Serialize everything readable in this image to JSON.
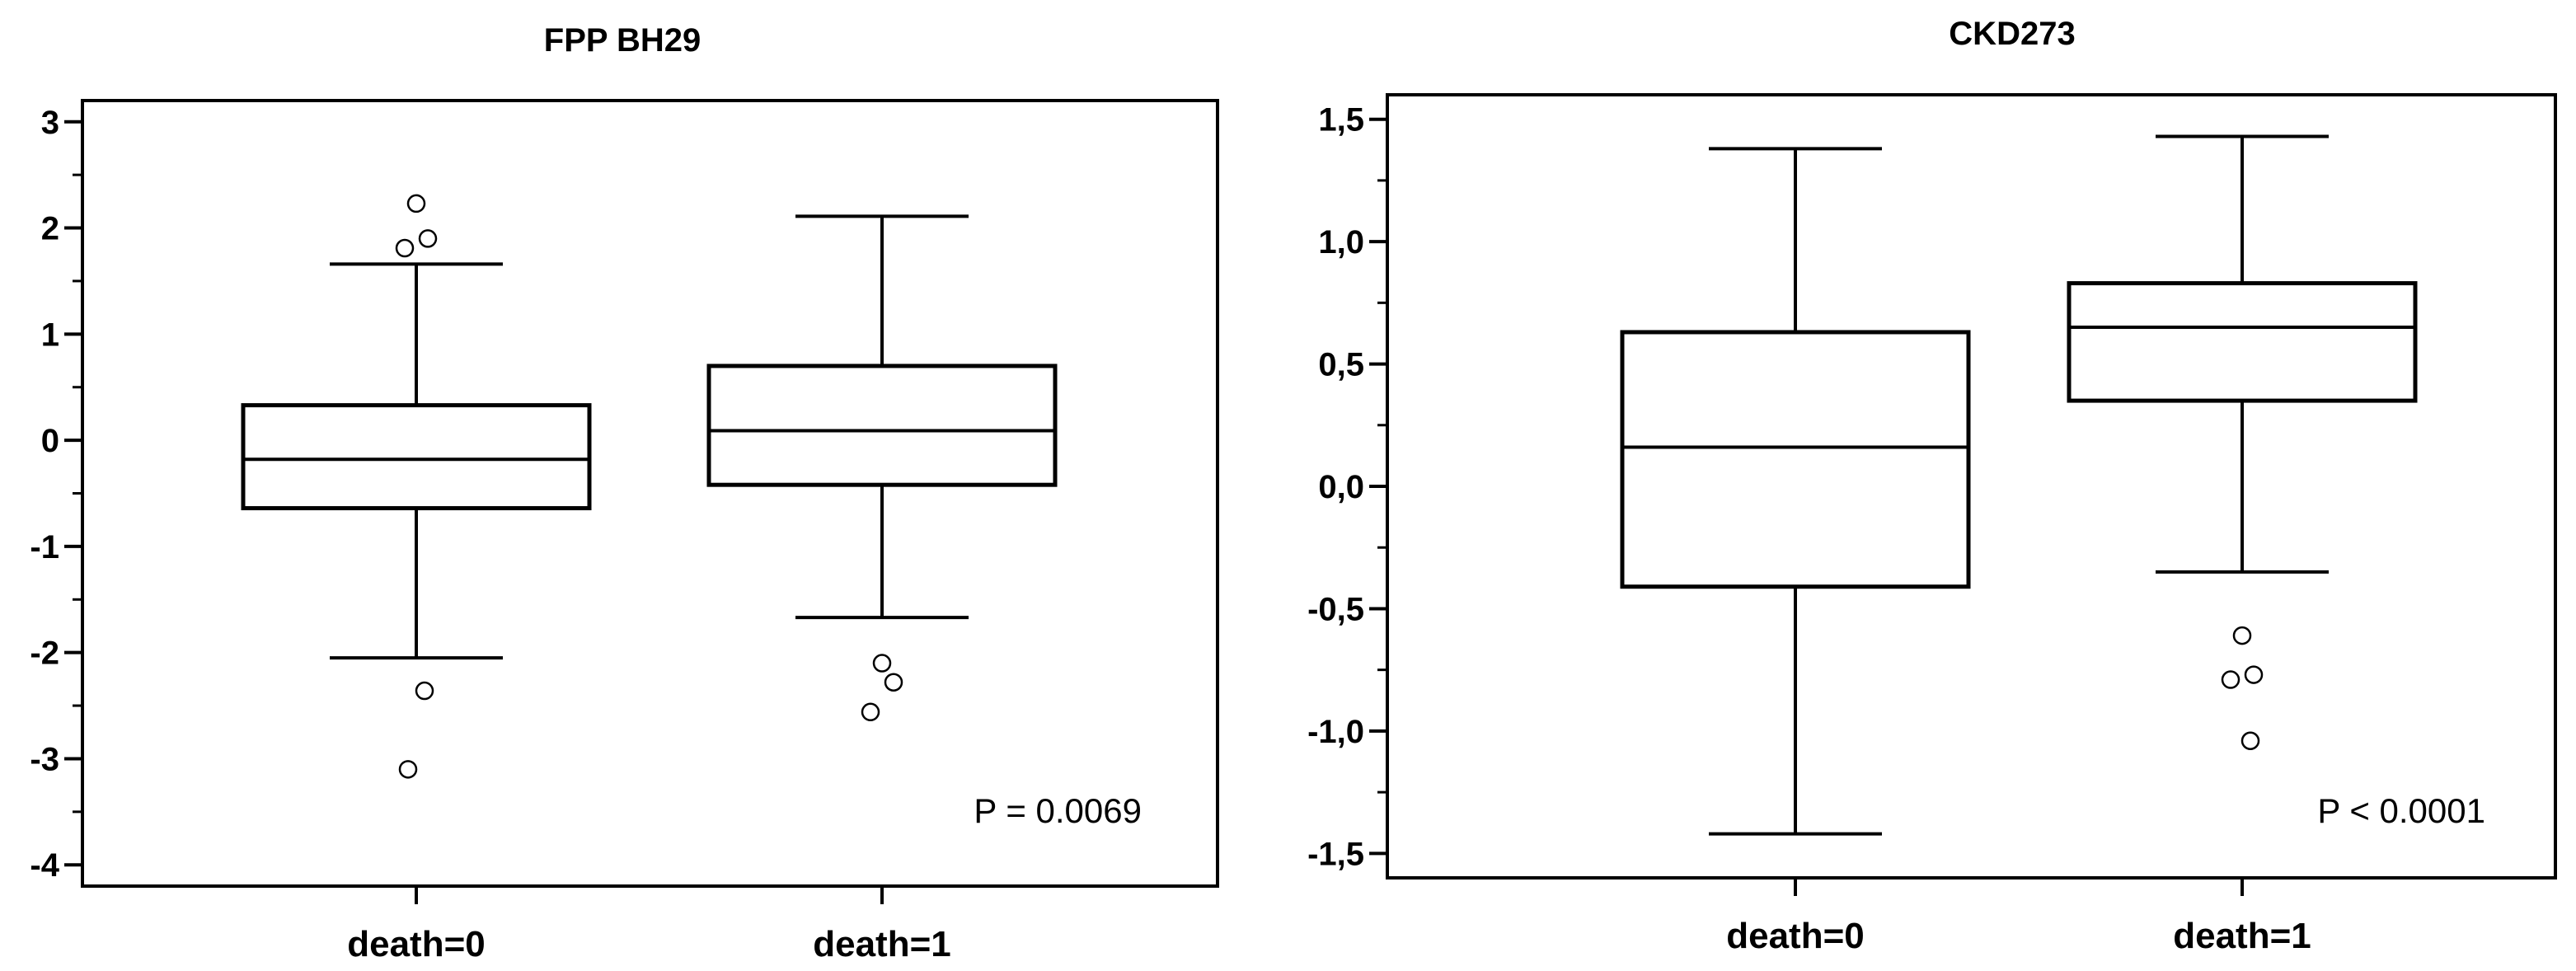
{
  "chart_data": [
    {
      "type": "box",
      "title": "FPP BH29",
      "xlabel": "",
      "ylabel": "",
      "ylim": [
        -4.2,
        3.2
      ],
      "yticks": [
        3,
        2,
        1,
        0,
        -1,
        -2,
        -3,
        -4
      ],
      "ytick_labels": [
        "3",
        "2",
        "1",
        "0",
        "-1",
        "-2",
        "-3",
        "-4"
      ],
      "categories": [
        "death=0",
        "death=1"
      ],
      "boxes": [
        {
          "category": "death=0",
          "whisker_low": -2.05,
          "q1": -0.64,
          "median": -0.18,
          "q3": 0.33,
          "whisker_high": 1.66,
          "outliers": [
            2.23,
            1.9,
            1.81,
            -2.36,
            -3.1
          ]
        },
        {
          "category": "death=1",
          "whisker_low": -1.67,
          "q1": -0.42,
          "median": 0.09,
          "q3": 0.7,
          "whisker_high": 2.11,
          "outliers": [
            -2.1,
            -2.28,
            -2.56
          ]
        }
      ],
      "annotation": "P = 0.0069"
    },
    {
      "type": "box",
      "title": "CKD273",
      "xlabel": "",
      "ylabel": "",
      "ylim": [
        -1.6,
        1.6
      ],
      "yticks": [
        1.5,
        1.0,
        0.5,
        0.0,
        -0.5,
        -1.0,
        -1.5
      ],
      "ytick_labels": [
        "1,5",
        "1,0",
        "0,5",
        "0,0",
        "-0,5",
        "-1,0",
        "-1,5"
      ],
      "categories": [
        "death=0",
        "death=1"
      ],
      "boxes": [
        {
          "category": "death=0",
          "whisker_low": -1.42,
          "q1": -0.41,
          "median": 0.16,
          "q3": 0.63,
          "whisker_high": 1.38,
          "outliers": []
        },
        {
          "category": "death=1",
          "whisker_low": -0.35,
          "q1": 0.35,
          "median": 0.65,
          "q3": 0.83,
          "whisker_high": 1.43,
          "outliers": [
            -0.61,
            -0.77,
            -0.79,
            -1.04
          ]
        }
      ],
      "annotation": "P < 0.0001"
    }
  ]
}
